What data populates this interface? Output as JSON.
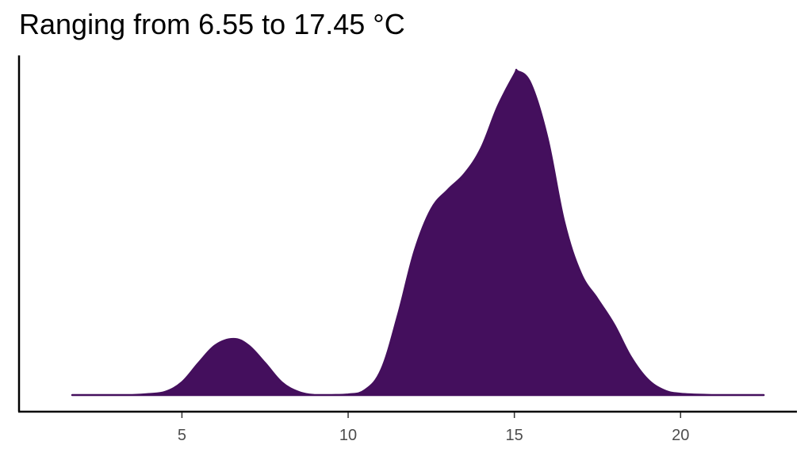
{
  "chart_data": {
    "type": "area",
    "title": "Ranging from 6.55 to 17.45 °C",
    "xlabel": "",
    "ylabel": "",
    "xlim": [
      0.1,
      23.5
    ],
    "ylim": [
      0,
      1.05
    ],
    "x_ticks": [
      5,
      10,
      15,
      20
    ],
    "grid": false,
    "legend": "none",
    "fill_color": "#440F5D",
    "series": [
      {
        "x": [
          1.7,
          2.0,
          3.0,
          3.5,
          4.0,
          4.5,
          5.0,
          5.5,
          6.0,
          6.55,
          7.0,
          7.5,
          8.0,
          8.5,
          9.0,
          9.5,
          10.0,
          10.5,
          11.0,
          11.5,
          12.0,
          12.5,
          13.0,
          13.5,
          14.0,
          14.5,
          15.0,
          15.1,
          15.5,
          16.0,
          16.5,
          17.0,
          17.5,
          18.0,
          18.5,
          19.0,
          19.5,
          20.0,
          21.0,
          22.0,
          22.5
        ],
        "y": [
          0.0,
          0.0,
          0.0,
          0.0,
          0.003,
          0.01,
          0.04,
          0.1,
          0.155,
          0.175,
          0.155,
          0.1,
          0.04,
          0.01,
          0.0,
          0.0,
          0.002,
          0.015,
          0.08,
          0.25,
          0.45,
          0.58,
          0.64,
          0.69,
          0.77,
          0.9,
          1.0,
          1.01,
          0.97,
          0.8,
          0.54,
          0.38,
          0.3,
          0.22,
          0.12,
          0.05,
          0.015,
          0.004,
          0.0,
          0.0,
          0.0
        ]
      }
    ]
  }
}
